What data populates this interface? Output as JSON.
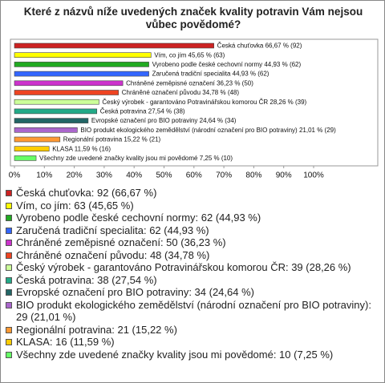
{
  "chart_data": {
    "type": "bar",
    "orientation": "horizontal",
    "title": "Které z názvů níže uvedených značek kvality potravin Vám nejsou vůbec povědomé?",
    "categories": [
      "Česká chuťovka",
      "Vím, co jím",
      "Vyrobeno podle české cechovní normy",
      "Zaručená tradiční specialita",
      "Chráněné zeměpisné označení",
      "Chráněné označení původu",
      "Český výrobek - garantováno Potravinářskou komorou ČR",
      "Česká potravina",
      "Evropské označení pro BIO potraviny",
      "BIO produkt ekologického zemědělství (národní označení pro BIO potraviny)",
      "Regionální potravina",
      "KLASA",
      "Všechny zde uvedené značky kvality jsou mi povědomé"
    ],
    "values": [
      66.67,
      45.65,
      44.93,
      44.93,
      36.23,
      34.78,
      28.26,
      27.54,
      24.64,
      21.01,
      15.22,
      11.59,
      7.25
    ],
    "value_labels": [
      "Česká chuťovka 66,67 % (92)",
      "Vím, co jím 45,65 % (63)",
      "Vyrobeno podle české cechovní normy 44,93 % (62)",
      "Zaručená tradiční specialita 44,93 % (62)",
      "Chráněné zeměpisné označení 36,23 % (50)",
      "Chráněné označení původu 34,78 % (48)",
      "Český výrobek - garantováno Potravinářskou komorou ČR 28,26 % (39)",
      "Česká potravina 27,54 % (38)",
      "Evropské označení pro BIO potraviny 24,64 % (34)",
      "BIO produkt ekologického zemědělství (národní označení pro BIO potraviny) 21,01 % (29)",
      "Regionální potravina 15,22 % (21)",
      "KLASA 11,59 % (16)",
      "Všechny zde uvedené značky kvality jsou mi povědomé 7,25 % (10)"
    ],
    "legend_labels": [
      "Česká chuťovka: 92 (66,67 %)",
      "Vím, co jím: 63 (45,65 %)",
      "Vyrobeno podle české cechovní normy: 62 (44,93 %)",
      "Zaručená tradiční specialita: 62 (44,93 %)",
      "Chráněné zeměpisné označení: 50 (36,23 %)",
      "Chráněné označení původu: 48 (34,78 %)",
      "Český výrobek - garantováno Potravinářskou komorou ČR: 39 (28,26 %)",
      "Česká potravina: 38 (27,54 %)",
      "Evropské označení pro BIO potraviny: 34 (24,64 %)",
      "BIO produkt ekologického zemědělství (národní označení pro BIO potraviny): 29 (21,01 %)",
      "Regionální potravina: 21 (15,22 %)",
      "KLASA: 16 (11,59 %)",
      "Všechny zde uvedené značky kvality jsou mi povědomé: 10 (7,25 %)"
    ],
    "colors": [
      "#cc2222",
      "#ffff00",
      "#22aa22",
      "#3366ff",
      "#cc33cc",
      "#ee4422",
      "#ccff99",
      "#22aa88",
      "#226666",
      "#aa66cc",
      "#ff9933",
      "#ffcc00",
      "#66ff66"
    ],
    "xlim": [
      0,
      100
    ],
    "xticks": [
      {
        "value": 0,
        "label": "0%"
      },
      {
        "value": 10,
        "label": "10%"
      },
      {
        "value": 20,
        "label": "20%"
      },
      {
        "value": 30,
        "label": "30%"
      },
      {
        "value": 40,
        "label": "40%"
      },
      {
        "value": 50,
        "label": "50%"
      },
      {
        "value": 60,
        "label": "60%"
      },
      {
        "value": 70,
        "label": "70%"
      },
      {
        "value": 80,
        "label": "80%"
      },
      {
        "value": 90,
        "label": "90%"
      },
      {
        "value": 100,
        "label": "100%"
      }
    ]
  }
}
